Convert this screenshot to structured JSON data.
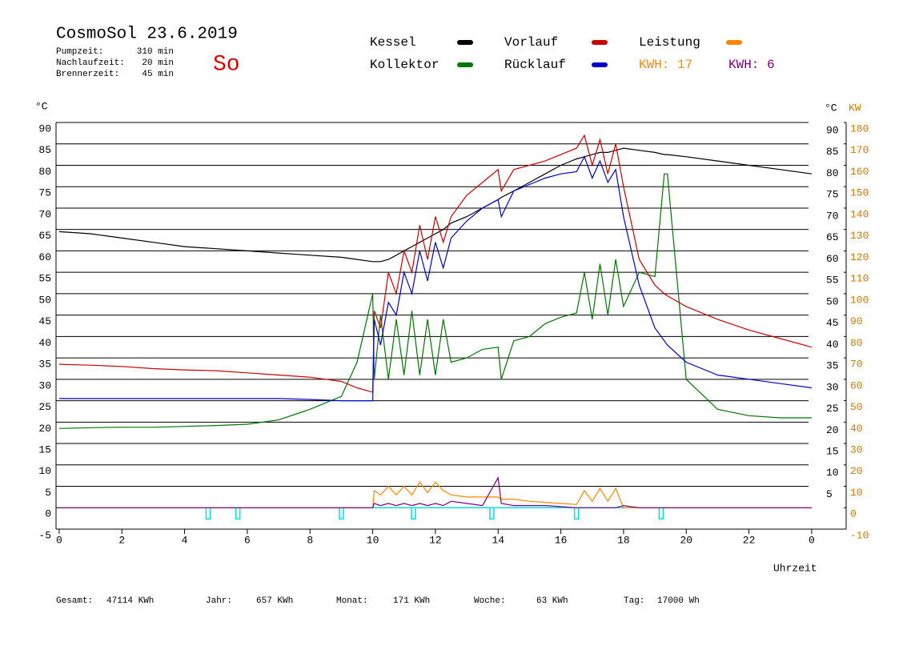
{
  "chart_data": {
    "type": "line",
    "title": "CosmoSol 23.6.2019",
    "day": "So",
    "info": [
      {
        "label": "Pumpzeit:",
        "value": "310 min"
      },
      {
        "label": "Nachlaufzeit:",
        "value": "20 min"
      },
      {
        "label": "Brennerzeit:",
        "value": "45 min"
      }
    ],
    "y_unit": "°C",
    "y2_unit": "KW",
    "x_label": "Uhrzeit",
    "x": [
      0,
      1,
      2,
      3,
      4,
      5,
      6,
      7,
      8,
      9,
      9.5,
      10,
      10.05,
      10.25,
      10.5,
      10.75,
      11,
      11.25,
      11.5,
      11.75,
      12,
      12.25,
      12.5,
      13,
      13.5,
      14,
      14.1,
      14.5,
      15,
      15.5,
      16,
      16.5,
      16.75,
      17,
      17.25,
      17.5,
      17.75,
      18,
      18.5,
      19,
      19.3,
      19.4,
      20,
      21,
      22,
      23,
      24
    ],
    "series": [
      {
        "name": "Kessel",
        "color": "#000000",
        "values": [
          64.5,
          64,
          63,
          62,
          61,
          60.5,
          60,
          59.5,
          59,
          58.5,
          58,
          57.5,
          57.5,
          57.5,
          58,
          59,
          60,
          61,
          62,
          63,
          64,
          65,
          66.5,
          68,
          70,
          72,
          72.5,
          74,
          76,
          78,
          80,
          81.5,
          82,
          82.5,
          83,
          83,
          83.5,
          84,
          83.5,
          83,
          82.5,
          82.5,
          82,
          81,
          80,
          79,
          78
        ]
      },
      {
        "name": "Kollektor",
        "color": "#007700",
        "values": [
          18.5,
          18.7,
          18.8,
          18.8,
          19,
          19.2,
          19.5,
          20.5,
          23,
          26,
          34,
          50,
          30,
          45,
          30,
          44,
          31,
          46,
          31,
          44,
          31,
          44,
          34,
          35,
          37,
          37.5,
          30,
          39,
          40,
          43,
          44.5,
          45.5,
          55,
          44,
          57,
          45,
          58,
          47,
          55,
          54,
          78,
          78,
          30,
          23,
          21.5,
          21,
          21
        ]
      },
      {
        "name": "Vorlauf",
        "color": "#cc0000",
        "values": [
          33.5,
          33.3,
          33,
          32.5,
          32.2,
          32,
          31.5,
          31,
          30.5,
          29.5,
          28,
          27,
          46,
          42,
          55,
          50,
          60,
          55,
          66,
          58,
          68,
          62,
          68,
          73,
          76,
          79,
          74,
          79,
          80,
          81,
          82.5,
          84,
          87,
          80,
          86,
          78,
          85,
          75,
          58,
          52,
          50,
          49.5,
          47,
          44,
          41.5,
          39.5,
          37.5
        ]
      },
      {
        "name": "Rücklauf",
        "color": "#0000cc",
        "values": [
          25.5,
          25.5,
          25.5,
          25.5,
          25.5,
          25.5,
          25.5,
          25.5,
          25.3,
          25,
          25,
          25,
          44,
          38,
          48,
          45,
          55,
          50,
          60,
          53,
          62,
          56,
          63,
          67,
          70,
          72,
          68,
          74,
          75.5,
          77,
          78,
          78.5,
          82,
          77,
          81,
          76,
          79,
          68,
          52,
          42,
          39,
          38,
          34,
          31,
          30,
          29,
          28
        ]
      },
      {
        "name": "Leistung",
        "color": "#ff8800",
        "axis": "y2",
        "values": [
          0,
          0,
          0,
          0,
          0,
          0,
          0,
          0,
          0,
          0,
          0,
          0,
          8,
          6,
          10,
          6,
          10,
          6,
          12,
          7,
          12,
          8,
          6,
          5,
          5,
          5,
          4,
          4,
          3,
          2.5,
          2,
          1.5,
          8,
          3,
          9,
          3,
          9,
          0,
          0,
          0,
          0,
          0,
          0,
          0,
          0,
          0,
          0
        ]
      },
      {
        "color": "#800080",
        "axis": "y2",
        "values": [
          0,
          0,
          0,
          0,
          0,
          0,
          0,
          0,
          0,
          0,
          0,
          0,
          2,
          1,
          2,
          1,
          2,
          1,
          2,
          1,
          2,
          1,
          3,
          2,
          1,
          14,
          2,
          1,
          1,
          1,
          0.5,
          0,
          0,
          0,
          0,
          0,
          0,
          1,
          0,
          0,
          0,
          0,
          0,
          0,
          0,
          0,
          0
        ]
      }
    ],
    "kwh_labels": [
      {
        "text": "KWH: 17",
        "color": "#ff8800"
      },
      {
        "text": "KWH: 6",
        "color": "#800080"
      }
    ],
    "pump_pulses": [
      4.75,
      5.7,
      9,
      11.3,
      13.8,
      16.5,
      19.2
    ],
    "pump_color": "#00e0e0",
    "xlim": [
      -0.1,
      25.1
    ],
    "xticks": [
      0,
      2,
      4,
      6,
      8,
      10,
      12,
      14,
      16,
      18,
      20,
      22,
      {
        "value": 24,
        "label": "0"
      }
    ],
    "ylim": [
      -5,
      90
    ],
    "yticks": [
      90,
      85,
      80,
      75,
      70,
      65,
      60,
      55,
      50,
      45,
      40,
      35,
      30,
      25,
      20,
      15,
      10,
      5,
      0,
      -5
    ],
    "yticks_right": [
      90,
      85,
      80,
      75,
      70,
      65,
      60,
      55,
      50,
      45,
      40,
      35,
      30,
      25,
      20,
      15,
      10,
      5
    ],
    "y2lim": [
      -10,
      180
    ],
    "y2ticks": [
      180,
      170,
      160,
      150,
      140,
      130,
      120,
      110,
      100,
      90,
      80,
      70,
      60,
      50,
      40,
      30,
      20,
      10,
      0,
      -10
    ],
    "y2_color": "#cc7a00",
    "grid": true,
    "footer": [
      {
        "label": "Gesamt:",
        "value": "47114 KWh"
      },
      {
        "label": "Jahr:",
        "value": "657 KWh"
      },
      {
        "label": "Monat:",
        "value": "171 KWh"
      },
      {
        "label": "Woche:",
        "value": "63 KWh"
      },
      {
        "label": "Tag:",
        "value": "17000 Wh"
      }
    ]
  }
}
